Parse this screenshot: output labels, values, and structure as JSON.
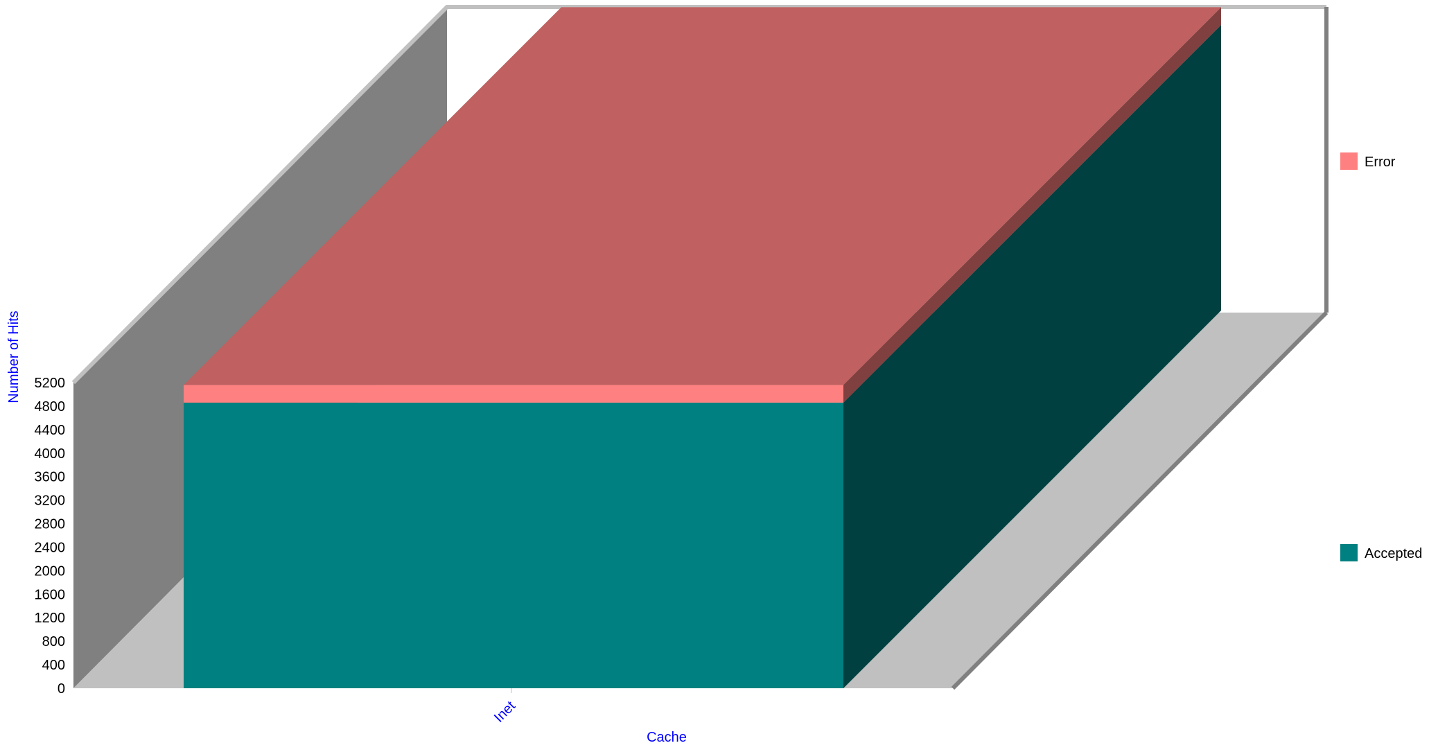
{
  "chart_data": {
    "type": "bar",
    "stacked": true,
    "three_d": true,
    "categories": [
      "Inet"
    ],
    "series": [
      {
        "name": "Accepted",
        "values": [
          4860
        ],
        "color": "#008080",
        "side_color": "#004040"
      },
      {
        "name": "Error",
        "values": [
          300
        ],
        "color": "#ff8080",
        "top_color": "#c06060",
        "side_color": "#804040"
      }
    ],
    "xlabel": "Cache",
    "ylabel": "Number of Hits",
    "ylim": [
      0,
      5200
    ],
    "yticks": [
      0,
      400,
      800,
      1200,
      1600,
      2000,
      2400,
      2800,
      3200,
      3600,
      4000,
      4400,
      4800,
      5200
    ],
    "legend_position": "right",
    "grid": false,
    "colors": {
      "back_wall": "#ffffff",
      "left_wall": "#808080",
      "floor": "#c0c0c0",
      "frame_light": "#c0c0c0",
      "frame_dark": "#808080",
      "axis_title": "#0000ff"
    }
  }
}
